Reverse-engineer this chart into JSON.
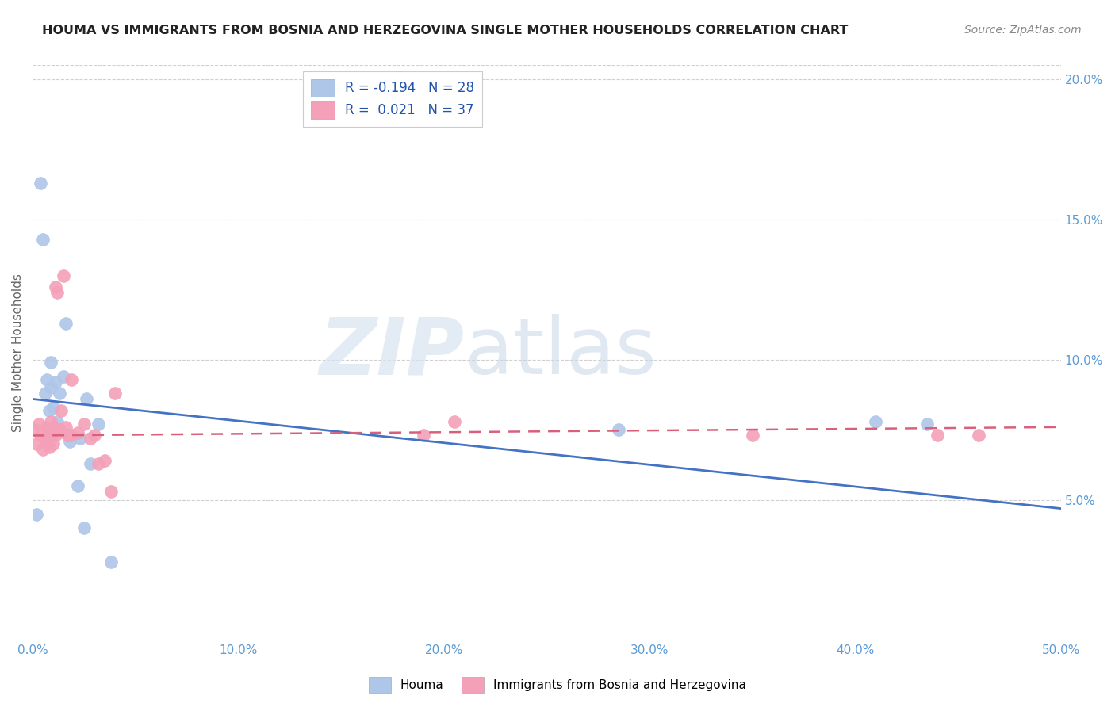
{
  "title": "HOUMA VS IMMIGRANTS FROM BOSNIA AND HERZEGOVINA SINGLE MOTHER HOUSEHOLDS CORRELATION CHART",
  "source": "Source: ZipAtlas.com",
  "ylabel": "Single Mother Households",
  "xlim": [
    0,
    0.5
  ],
  "ylim": [
    0,
    0.205
  ],
  "x_ticks": [
    0.0,
    0.1,
    0.2,
    0.3,
    0.4,
    0.5
  ],
  "x_tick_labels": [
    "0.0%",
    "10.0%",
    "20.0%",
    "30.0%",
    "40.0%",
    "50.0%"
  ],
  "y_ticks": [
    0.05,
    0.1,
    0.15,
    0.2
  ],
  "y_tick_labels": [
    "5.0%",
    "10.0%",
    "15.0%",
    "20.0%"
  ],
  "legend_entries": [
    {
      "label": "R = -0.194   N = 28",
      "color": "#aec6e8"
    },
    {
      "label": "R =  0.021   N = 37",
      "color": "#f4a0b8"
    }
  ],
  "houma_color": "#aec6e8",
  "bosnia_color": "#f4a0b8",
  "houma_line_color": "#4472c4",
  "bosnia_line_color": "#d9607a",
  "watermark_zip": "ZIP",
  "watermark_atlas": "atlas",
  "background_color": "#ffffff",
  "houma_x": [
    0.002,
    0.004,
    0.005,
    0.006,
    0.007,
    0.008,
    0.008,
    0.009,
    0.009,
    0.01,
    0.01,
    0.011,
    0.012,
    0.013,
    0.015,
    0.016,
    0.018,
    0.019,
    0.022,
    0.023,
    0.025,
    0.026,
    0.028,
    0.032,
    0.038,
    0.285,
    0.41,
    0.435
  ],
  "houma_y": [
    0.045,
    0.163,
    0.143,
    0.088,
    0.093,
    0.074,
    0.082,
    0.09,
    0.099,
    0.074,
    0.083,
    0.092,
    0.078,
    0.088,
    0.094,
    0.113,
    0.071,
    0.073,
    0.055,
    0.072,
    0.04,
    0.086,
    0.063,
    0.077,
    0.028,
    0.075,
    0.078,
    0.077
  ],
  "bosnia_x": [
    0.001,
    0.002,
    0.003,
    0.004,
    0.005,
    0.006,
    0.007,
    0.007,
    0.008,
    0.008,
    0.009,
    0.009,
    0.01,
    0.01,
    0.011,
    0.011,
    0.012,
    0.013,
    0.014,
    0.015,
    0.016,
    0.017,
    0.018,
    0.019,
    0.022,
    0.025,
    0.028,
    0.03,
    0.032,
    0.035,
    0.038,
    0.04,
    0.19,
    0.205,
    0.35,
    0.44,
    0.46
  ],
  "bosnia_y": [
    0.075,
    0.07,
    0.077,
    0.073,
    0.068,
    0.072,
    0.076,
    0.071,
    0.069,
    0.075,
    0.074,
    0.078,
    0.07,
    0.076,
    0.073,
    0.126,
    0.124,
    0.075,
    0.082,
    0.13,
    0.076,
    0.073,
    0.073,
    0.093,
    0.074,
    0.077,
    0.072,
    0.073,
    0.063,
    0.064,
    0.053,
    0.088,
    0.073,
    0.078,
    0.073,
    0.073,
    0.073
  ],
  "houma_line_x": [
    0.0,
    0.5
  ],
  "houma_line_y": [
    0.086,
    0.047
  ],
  "bosnia_line_x": [
    0.0,
    0.5
  ],
  "bosnia_line_y": [
    0.073,
    0.076
  ]
}
